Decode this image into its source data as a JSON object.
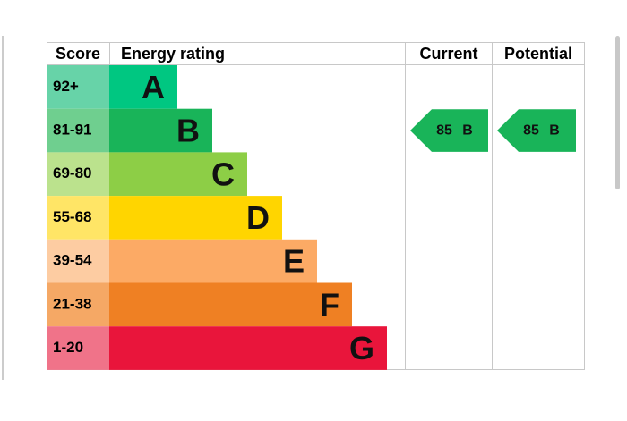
{
  "header": {
    "score": "Score",
    "rating": "Energy rating",
    "current": "Current",
    "potential": "Potential"
  },
  "bands": [
    {
      "score": "92+",
      "letter": "A",
      "color": "#00c781",
      "score_color": "#67d3a8"
    },
    {
      "score": "81-91",
      "letter": "B",
      "color": "#19b459",
      "score_color": "#6fcf8f"
    },
    {
      "score": "69-80",
      "letter": "C",
      "color": "#8dce46",
      "score_color": "#bbe28d"
    },
    {
      "score": "55-68",
      "letter": "D",
      "color": "#ffd500",
      "score_color": "#ffe566"
    },
    {
      "score": "39-54",
      "letter": "E",
      "color": "#fcaa65",
      "score_color": "#fdcca2"
    },
    {
      "score": "21-38",
      "letter": "F",
      "color": "#ef8023",
      "score_color": "#f5a865"
    },
    {
      "score": "1-20",
      "letter": "G",
      "color": "#e9153b",
      "score_color": "#f07389"
    }
  ],
  "current": {
    "value": 85,
    "letter": "B"
  },
  "potential": {
    "value": 85,
    "letter": "B"
  }
}
